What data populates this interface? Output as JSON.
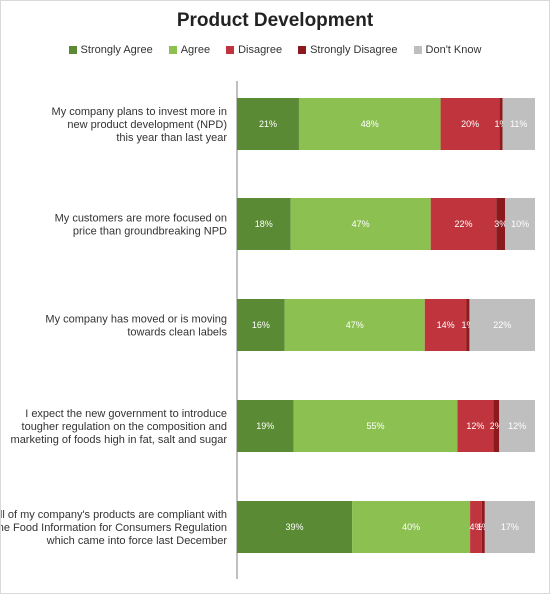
{
  "chart_data": {
    "type": "bar",
    "orientation": "horizontal",
    "stacked": true,
    "title": "Product Development",
    "legend_position": "top",
    "grid": false,
    "categories": [
      [
        "My company plans to invest more in",
        "new product development (NPD)",
        "this year than last year"
      ],
      [
        "My customers are more focused on",
        "price than groundbreaking NPD"
      ],
      [
        "My company has moved or is moving",
        "towards clean labels"
      ],
      [
        "I expect the new government to introduce",
        "tougher regulation on the composition and",
        "marketing of foods high in fat, salt and sugar"
      ],
      [
        "All of my company's products are compliant with",
        "the Food Information for Consumers Regulation",
        "which came into force last December"
      ]
    ],
    "series": [
      {
        "name": "Strongly Agree",
        "color": "#5a8a34",
        "values": [
          21,
          18,
          16,
          19,
          39
        ],
        "labels": [
          "21%",
          "18%",
          "16%",
          "19%",
          "39%"
        ]
      },
      {
        "name": "Agree",
        "color": "#8cc152",
        "values": [
          48,
          47,
          47,
          55,
          40
        ],
        "labels": [
          "48%",
          "47%",
          "47%",
          "55%",
          "40%"
        ]
      },
      {
        "name": "Disagree",
        "color": "#c0353d",
        "values": [
          20,
          22,
          14,
          12,
          4
        ],
        "labels": [
          "20%",
          "22%",
          "14%",
          "12%",
          "4%"
        ]
      },
      {
        "name": "Strongly Disagree",
        "color": "#8b1a1e",
        "values": [
          1,
          3,
          1,
          2,
          1
        ],
        "labels": [
          "1%",
          "3%",
          "1%",
          "2%",
          "1%"
        ]
      },
      {
        "name": "Don't Know",
        "color": "#bfbfbf",
        "values": [
          11,
          10,
          22,
          12,
          17
        ],
        "labels": [
          "11%",
          "10%",
          "22%",
          "12%",
          "17%"
        ]
      }
    ]
  }
}
